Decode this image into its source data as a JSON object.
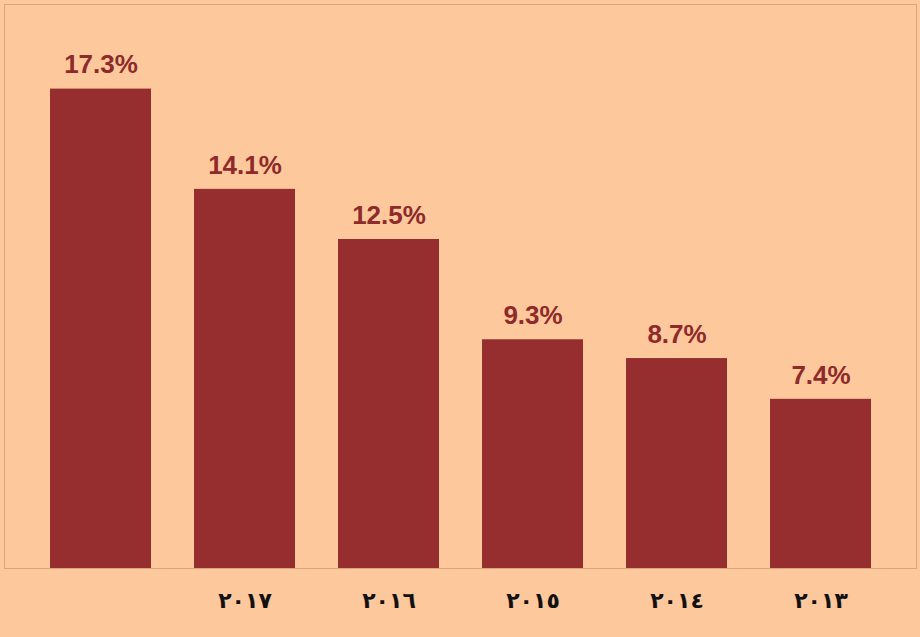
{
  "chart_data": {
    "type": "bar",
    "categories": [
      null,
      "٢٠١٧",
      "٢٠١٦",
      "٢٠١٥",
      "٢٠١٤",
      "٢٠١٣"
    ],
    "values": [
      17.3,
      14.1,
      12.5,
      9.3,
      8.7,
      7.4
    ],
    "value_labels": [
      "17.3%",
      "14.1%",
      "12.5%",
      "9.3%",
      "8.7%",
      "7.4%"
    ],
    "color": "#962d2f",
    "ylim": [
      2,
      20
    ],
    "yticks": [],
    "grid": false,
    "data_labels": true,
    "tick_labels": "x"
  }
}
